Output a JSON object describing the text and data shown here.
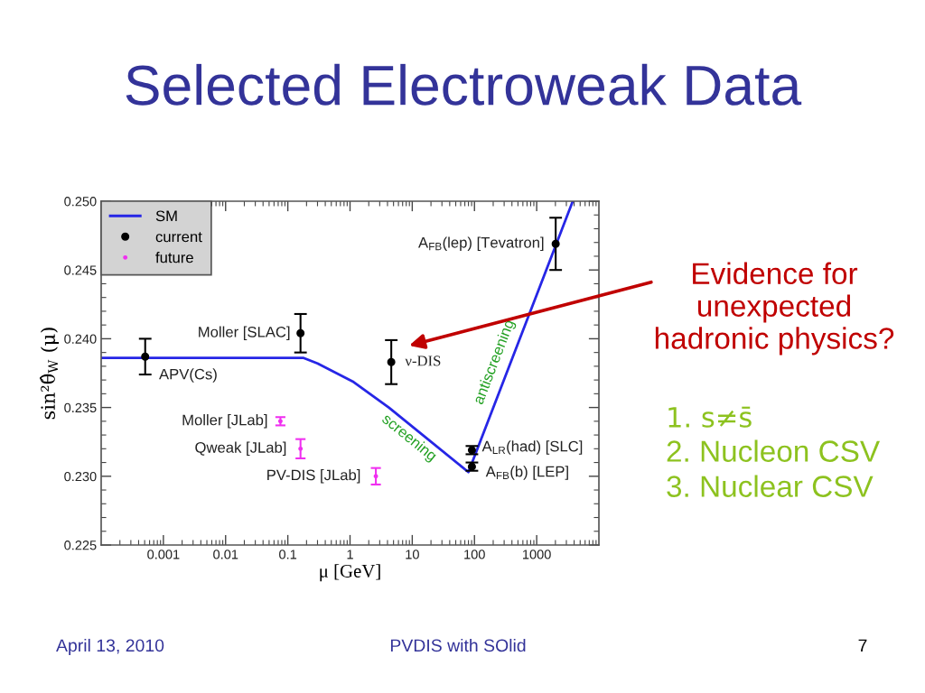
{
  "chart_data": {
    "type": "scatter",
    "title": "Selected Electroweak Data",
    "xlabel": "μ [GeV]",
    "ylabel": "sin²θ̂$_{W}$ (μ)",
    "log": "x",
    "xlim": [
      0.0001,
      10000
    ],
    "ylim": [
      0.225,
      0.25
    ],
    "xticks": [
      0.001,
      0.01,
      0.1,
      1,
      10,
      100,
      1000
    ],
    "yticks": [
      0.225,
      {
        "value": 0.23,
        "label": "0.230"
      },
      0.235,
      {
        "value": 0.24,
        "label": "0.240"
      },
      0.245,
      {
        "value": 0.25,
        "label": "0.250"
      }
    ],
    "marker": "circle",
    "legend": "top left",
    "series": [
      {
        "name": "SM",
        "type": "line",
        "marker": "none",
        "color": "#2626e6",
        "x": [
          0.0001,
          0.18,
          0.3,
          1.1,
          4.2,
          80,
          3800
        ],
        "values": [
          0.2386,
          0.2386,
          0.2382,
          0.2369,
          0.235,
          0.2303,
          0.25
        ]
      },
      {
        "name": "current",
        "color": "#000000",
        "x": [
          0.00051,
          0.16,
          4.6,
          91,
          91,
          2020
        ],
        "values": [
          0.2387,
          0.2404,
          0.2383,
          0.2319,
          0.2307,
          0.2469
        ],
        "errors": [
          0.0013,
          0.0014,
          0.0016,
          0.0003,
          0.0003,
          0.0019
        ]
      },
      {
        "name": "future",
        "color": "#f030f0",
        "x": [
          0.076,
          0.16,
          2.6
        ],
        "values": [
          0.234,
          0.232,
          0.23
        ],
        "errors": [
          0.0003,
          0.0007,
          0.0006
        ]
      }
    ],
    "annotations": [
      {
        "text": "APV(Cs)",
        "x": 0.00051,
        "y": 0.2387
      },
      {
        "text": "Moller [SLAC]",
        "x": 0.16,
        "y": 0.2404
      },
      {
        "text": "ν-DIS",
        "x": 4.6,
        "y": 0.2383
      },
      {
        "text": "A$_{FB}$(lep) [Tevatron]",
        "x": 2020,
        "y": 0.2469
      },
      {
        "text": "A$_{LR}$(had) [SLC]",
        "x": 91,
        "y": 0.2319
      },
      {
        "text": "A$_{FB}$(b) [LEP]",
        "x": 91,
        "y": 0.2307
      },
      {
        "text": "Moller [JLab]",
        "x": 0.076,
        "y": 0.234
      },
      {
        "text": "Qweak [JLab]",
        "x": 0.16,
        "y": 0.232
      },
      {
        "text": "PV-DIS [JLab]",
        "x": 2.6,
        "y": 0.23
      },
      {
        "text": "screening",
        "x": 11.5,
        "y": 0.2334
      },
      {
        "text": "antiscreening",
        "x": 355,
        "y": 0.2379
      },
      "Evidence for\nunexpected\nhadronic physics?",
      "1. s≠s̄",
      "2. Nucleon CSV",
      "3. Nuclear CSV",
      "April 13, 2010",
      "PVDIS with SOlid",
      "7"
    ]
  }
}
